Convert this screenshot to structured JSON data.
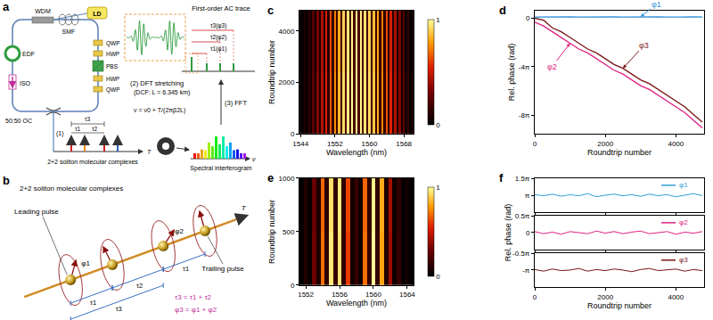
{
  "chart_data": [
    {
      "type": "heatmap",
      "title": "c",
      "x_label": "Wavelength (nm)",
      "y_label": "Roundtrip number",
      "x": [
        1544,
        1544.5,
        1545,
        1545.5,
        1546,
        1546.5,
        1547,
        1547.5,
        1548,
        1548.5,
        1549,
        1549.5,
        1550,
        1550.5,
        1551,
        1551.5,
        1552,
        1552.5,
        1553,
        1553.5,
        1554,
        1554.5,
        1555,
        1555.5,
        1556,
        1556.5,
        1557,
        1557.5,
        1558,
        1558.5,
        1559,
        1559.5,
        1560,
        1560.5,
        1561,
        1561.5,
        1562,
        1562.5,
        1563,
        1563.5,
        1564,
        1564.5,
        1565,
        1565.5,
        1566,
        1566.5,
        1567,
        1567.5,
        1568,
        1568.5,
        1569,
        1569.5,
        1570
      ],
      "y": [
        1200,
        3600
      ],
      "z": [
        [
          0.05,
          0.01,
          0.08,
          0.02,
          0.15,
          0.04,
          0.25,
          0.06,
          0.35,
          0.08,
          0.45,
          0.1,
          0.55,
          0.12,
          0.65,
          0.14,
          0.75,
          0.16,
          0.85,
          0.18,
          0.92,
          0.19,
          0.97,
          0.2,
          1,
          0.2,
          1,
          0.2,
          0.98,
          0.19,
          0.95,
          0.19,
          0.92,
          0.18,
          0.88,
          0.17,
          0.82,
          0.16,
          0.74,
          0.14,
          0.65,
          0.12,
          0.55,
          0.1,
          0.45,
          0.08,
          0.35,
          0.06,
          0.25,
          0.04,
          0.15,
          0.02,
          0.08
        ],
        [
          0.04,
          0.01,
          0.07,
          0.02,
          0.14,
          0.04,
          0.24,
          0.05,
          0.33,
          0.07,
          0.43,
          0.09,
          0.53,
          0.11,
          0.63,
          0.13,
          0.72,
          0.15,
          0.82,
          0.17,
          0.9,
          0.18,
          0.95,
          0.19,
          0.98,
          0.2,
          0.99,
          0.2,
          0.97,
          0.19,
          0.94,
          0.18,
          0.9,
          0.17,
          0.86,
          0.16,
          0.8,
          0.15,
          0.72,
          0.13,
          0.63,
          0.11,
          0.53,
          0.09,
          0.43,
          0.07,
          0.33,
          0.05,
          0.23,
          0.03,
          0.14,
          0.02,
          0.07
        ]
      ],
      "xlim": [
        1543.75,
        1570.25
      ],
      "xticks": [
        1544,
        1552,
        1560,
        1568
      ],
      "ylim": [
        0,
        4800
      ],
      "yticks": [
        0,
        2000,
        4000
      ],
      "colorbar_range": [
        0,
        1
      ],
      "colorbar_ticks": [
        0,
        1
      ]
    },
    {
      "type": "line",
      "title": "d",
      "x_label": "Roundtrip number",
      "y_label": "Rel. phase (rad)",
      "x": [
        0,
        250,
        500,
        750,
        1000,
        1250,
        1500,
        1750,
        2000,
        2250,
        2500,
        2750,
        3000,
        3250,
        3500,
        3750,
        4000,
        4250,
        4500,
        4750
      ],
      "series": [
        {
          "name": "φ1",
          "color": "#2e8fd8",
          "values": [
            0.3,
            0.35,
            0.3,
            0.4,
            0.35,
            0.3,
            0.35,
            0.4,
            0.3,
            0.35,
            0.3,
            0.35,
            0.4,
            0.3,
            0.35,
            0.3,
            0.35,
            0.3,
            0.35,
            0.3
          ]
        },
        {
          "name": "φ2",
          "color": "#e0207f",
          "values": [
            -1,
            -2,
            -3.5,
            -5,
            -6.5,
            -8,
            -9,
            -10.5,
            -12,
            -13.5,
            -14.5,
            -16,
            -17.5,
            -18.5,
            -20,
            -21.5,
            -23,
            -24.5,
            -26.5,
            -28.5
          ]
        },
        {
          "name": "φ3",
          "color": "#7a1414",
          "values": [
            0,
            -0.5,
            -2.5,
            -3.5,
            -5,
            -6.5,
            -8,
            -9,
            -10.5,
            -12,
            -13,
            -14.5,
            -16,
            -17,
            -18.5,
            -20,
            -21.5,
            -23,
            -25,
            -27
          ]
        }
      ],
      "xlim": [
        0,
        4800
      ],
      "xticks": [
        0,
        2000,
        4000
      ],
      "ylim": [
        -30,
        2
      ],
      "yticks": [
        0,
        {
          "value": -12.566,
          "label": "-4π"
        },
        {
          "value": -25.133,
          "label": "-8π"
        }
      ]
    },
    {
      "type": "heatmap",
      "title": "e",
      "x_label": "Wavelength (nm)",
      "y_label": "Roundtrip number",
      "x": [
        1551.5,
        1552,
        1552.5,
        1553,
        1553.5,
        1554,
        1554.5,
        1555,
        1555.5,
        1556,
        1556.5,
        1557,
        1557.5,
        1558,
        1558.5,
        1559,
        1559.5,
        1560,
        1560.5,
        1561,
        1561.5,
        1562,
        1562.5,
        1563,
        1563.5,
        1564,
        1564.5
      ],
      "y": [
        250,
        750
      ],
      "z": [
        [
          0.01,
          0.1,
          0.02,
          0.3,
          0.08,
          0.7,
          0.13,
          0.95,
          0.15,
          0.95,
          0.13,
          0.6,
          0.05,
          0.15,
          0.05,
          0.7,
          0.14,
          1,
          0.14,
          0.8,
          0.09,
          0.4,
          0.04,
          0.15,
          0.02,
          0.05,
          0.01
        ],
        [
          0.01,
          0.09,
          0.02,
          0.28,
          0.07,
          0.68,
          0.12,
          0.93,
          0.14,
          0.96,
          0.12,
          0.62,
          0.05,
          0.16,
          0.05,
          0.68,
          0.13,
          0.98,
          0.13,
          0.82,
          0.08,
          0.42,
          0.04,
          0.14,
          0.02,
          0.05,
          0.01
        ]
      ],
      "xlim": [
        1551.25,
        1564.75
      ],
      "xticks": [
        1552,
        1556,
        1560,
        1564
      ],
      "ylim": [
        0,
        1000
      ],
      "yticks": [
        0,
        500,
        1000
      ],
      "colorbar_range": [
        0,
        1
      ],
      "colorbar_ticks": [
        0,
        1
      ]
    },
    {
      "type": "line",
      "title": "f",
      "x_label": "Roundtrip number",
      "y_label": "Rel. phase (rad)",
      "x": [
        0,
        250,
        500,
        750,
        1000,
        1250,
        1500,
        1750,
        2000,
        2250,
        2500,
        2750,
        3000,
        3250,
        3500,
        3750,
        4000,
        4250,
        4500,
        4750
      ],
      "xlim": [
        0,
        4800
      ],
      "xticks": [
        0,
        2000,
        4000
      ],
      "series": [
        {
          "name": "φ1",
          "color": "#2f9fd8",
          "values": [
            3.2,
            3.1,
            3.25,
            3.05,
            3.2,
            3.1,
            3.3,
            3.0,
            3.15,
            3.25,
            3.1,
            3.2,
            3.05,
            3.25,
            3.1,
            3.2,
            3.0,
            3.15,
            3.3,
            3.1
          ],
          "ylim": [
            1.55,
            4.75
          ],
          "yticks": [
            {
              "value": 3.1416,
              "label": "π"
            },
            {
              "value": 4.7124,
              "label": "1.5π"
            }
          ]
        },
        {
          "name": "φ2",
          "color": "#e0207f",
          "values": [
            0.1,
            -0.1,
            0.05,
            -0.15,
            0.1,
            0,
            -0.1,
            0.15,
            -0.05,
            0.1,
            -0.1,
            0.05,
            0.15,
            -0.1,
            0,
            0.1,
            -0.15,
            0.05,
            -0.05,
            0.1
          ],
          "ylim": [
            -1.6,
            1.6
          ],
          "yticks": [
            0,
            {
              "value": 1.5708,
              "label": "0.5π"
            }
          ]
        },
        {
          "name": "φ3",
          "color": "#7a1414",
          "values": [
            -3.1,
            -3.25,
            -3.05,
            -3.2,
            -3.15,
            -3.0,
            -3.25,
            -3.1,
            -3.2,
            -3.05,
            -3.15,
            -3.3,
            -3.1,
            -3.0,
            -3.2,
            -3.15,
            -3.05,
            -3.25,
            -3.1,
            -3.2
          ],
          "ylim": [
            -4.75,
            -1.55
          ],
          "yticks": [
            {
              "value": -3.1416,
              "label": "-π"
            },
            {
              "value": -1.5708,
              "label": "-0.5π"
            }
          ]
        }
      ]
    }
  ],
  "diagrams": {
    "a": {
      "label": "a",
      "wdm": "WDM",
      "ld": "LD",
      "smf": "SMF",
      "edf": "EDF",
      "iso": "ISO",
      "oc": "50:50 OC",
      "polarization_optics": [
        "QWP",
        "HWP",
        "PBS",
        "HWP",
        "QWP"
      ],
      "step1": "(1)",
      "step2": "(2) DFT stretching",
      "dcf": "(DCF: L = 6.345 km)",
      "mapping": "ν = ν0 + T/(2πβ2L)",
      "step3": "(3) FFT",
      "ac_trace": "First-order AC trace",
      "ac_labels": [
        "τ3(φ3)",
        "τ2(φ2)",
        "τ1(φ1)"
      ],
      "complexes": "2+2 soliton molecular complexes",
      "time_axis": "T",
      "freq_axis": "ν",
      "interferogram": "Spectral interferogram",
      "tau_labels": [
        "τ3",
        "τ1",
        "τ2"
      ]
    },
    "b": {
      "label": "b",
      "title": "2+2 soliton molecular complexes",
      "leading": "Leading pulse",
      "trailing": "Trailing pulse",
      "time_axis": "T",
      "phases": [
        "φ1",
        "φ2"
      ],
      "delays": [
        "τ1",
        "τ2",
        "τ1",
        "τ3"
      ],
      "relations": [
        "τ3 = τ1 + τ2",
        "φ3 = φ1 + φ2"
      ]
    }
  }
}
